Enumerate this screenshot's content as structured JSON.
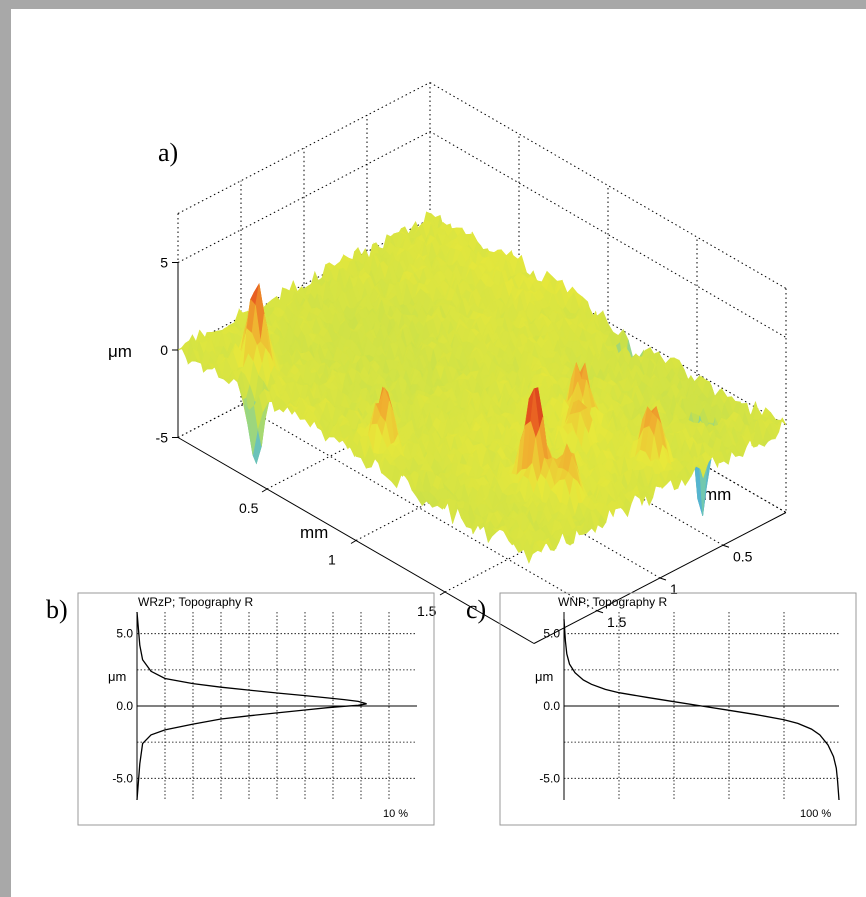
{
  "figure": {
    "panel_a": {
      "label": "a)",
      "z_axis": {
        "label": "μm",
        "ticks": [
          "5",
          "0",
          "-5"
        ]
      },
      "x_axis": {
        "label": "mm",
        "ticks": [
          "0.5",
          "1",
          "1.5"
        ]
      },
      "y_axis": {
        "label": "mm",
        "ticks": [
          "0.5",
          "1",
          "1.5"
        ]
      },
      "colormap": [
        "#3a7fd0",
        "#4fb0d8",
        "#7fd0a0",
        "#c8e04a",
        "#e8e83a",
        "#f0b030",
        "#e85a20",
        "#c0201a"
      ]
    },
    "panel_b": {
      "label": "b)",
      "title": "WRzP; Topography R",
      "y_unit": "μm",
      "y_ticks": [
        "5.0",
        "0.0",
        "-5.0"
      ],
      "x_end_label": "10 %"
    },
    "panel_c": {
      "label": "c)",
      "title": "WNP; Topography R",
      "y_unit": "μm",
      "y_ticks": [
        "5.0",
        "0.0",
        "-5.0"
      ],
      "x_end_label": "100 %"
    }
  },
  "chart_data": [
    {
      "type": "surface",
      "panel": "a",
      "title": "",
      "xlabel": "mm",
      "ylabel": "mm",
      "zlabel": "μm",
      "xlim": [
        0,
        2
      ],
      "ylim": [
        0,
        2
      ],
      "zlim": [
        -5,
        5
      ],
      "x_ticks": [
        0.5,
        1,
        1.5
      ],
      "y_ticks": [
        0.5,
        1,
        1.5
      ],
      "z_ticks": [
        5,
        0,
        -5
      ],
      "peaks": [
        {
          "x": 0.3,
          "y": 1.8,
          "z": 4.5
        },
        {
          "x": 1.05,
          "y": 1.85,
          "z": 3.5
        },
        {
          "x": 1.65,
          "y": 1.5,
          "z": 5.5
        },
        {
          "x": 1.8,
          "y": 1.45,
          "z": 3.0
        },
        {
          "x": 1.55,
          "y": 1.0,
          "z": 2.0
        },
        {
          "x": 1.45,
          "y": 0.85,
          "z": 3.0
        },
        {
          "x": 1.85,
          "y": 0.85,
          "z": 3.5
        }
      ],
      "pits": [
        {
          "x": 0.4,
          "y": 1.95,
          "z": -5.0
        },
        {
          "x": 1.15,
          "y": 0.05,
          "z": -5.0
        },
        {
          "x": 1.7,
          "y": 0.25,
          "z": -6.0
        }
      ]
    },
    {
      "type": "line",
      "panel": "b",
      "title": "WRzP; Topography R",
      "ylabel": "μm",
      "xlabel": "",
      "xlim": [
        0,
        10
      ],
      "ylim": [
        -6.5,
        6.5
      ],
      "x_end_label": "10 %",
      "y_ticks": [
        5.0,
        0.0,
        -5.0
      ],
      "series": [
        {
          "x": [
            0,
            0.1,
            0.2,
            0.5,
            1.0,
            2.0,
            3.0,
            4.0,
            5.0,
            6.0,
            6.8,
            7.4,
            7.9,
            8.2,
            7.9,
            7.4,
            6.8,
            6.0,
            5.0,
            4.0,
            3.0,
            2.0,
            1.0,
            0.5,
            0.2,
            0.1,
            0
          ],
          "y": [
            6.5,
            4.2,
            3.2,
            2.4,
            1.9,
            1.55,
            1.3,
            1.1,
            0.9,
            0.72,
            0.56,
            0.44,
            0.32,
            0.15,
            0.05,
            -0.02,
            -0.12,
            -0.28,
            -0.48,
            -0.68,
            -0.9,
            -1.25,
            -1.65,
            -2.0,
            -2.6,
            -4.0,
            -6.5
          ]
        }
      ]
    },
    {
      "type": "line",
      "panel": "c",
      "title": "WNP; Topography R",
      "ylabel": "μm",
      "xlabel": "",
      "xlim": [
        0,
        100
      ],
      "ylim": [
        -6.5,
        6.5
      ],
      "x_end_label": "100 %",
      "y_ticks": [
        5.0,
        0.0,
        -5.0
      ],
      "series": [
        {
          "x": [
            0,
            0.5,
            1,
            2,
            4,
            7,
            10,
            15,
            20,
            30,
            40,
            50,
            60,
            70,
            80,
            85,
            90,
            93,
            96,
            98,
            99,
            99.5,
            100
          ],
          "y": [
            6.0,
            4.5,
            3.6,
            2.9,
            2.3,
            1.8,
            1.5,
            1.15,
            0.92,
            0.6,
            0.3,
            0.0,
            -0.3,
            -0.6,
            -0.95,
            -1.2,
            -1.6,
            -2.0,
            -2.7,
            -3.5,
            -4.3,
            -5.2,
            -6.5
          ]
        }
      ]
    }
  ]
}
